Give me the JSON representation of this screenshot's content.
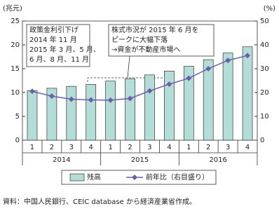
{
  "chart_data": {
    "type": "bar-line",
    "y_label": "(兆元)",
    "y2_label": "(%)",
    "categories": [
      "1",
      "2",
      "3",
      "4",
      "1",
      "2",
      "3",
      "4",
      "1",
      "2",
      "3",
      "4"
    ],
    "years": [
      "2014",
      "2015",
      "2016"
    ],
    "series": [
      {
        "name": "残高",
        "type": "bar",
        "color": "#b5ddd8",
        "values": [
          10.4,
          10.9,
          11.3,
          11.7,
          12.4,
          12.9,
          13.7,
          14.5,
          15.5,
          16.9,
          18.3,
          19.6
        ]
      },
      {
        "name": "前年比（右目盛り）",
        "type": "line",
        "axis": "y2",
        "color": "#6a5fa8",
        "values": [
          20.5,
          18.5,
          17.2,
          16.9,
          16.8,
          17.5,
          20.7,
          23.5,
          26,
          30,
          33.5,
          35.5
        ]
      }
    ],
    "ylim": [
      0,
      25
    ],
    "yticks": [
      0,
      5,
      10,
      15,
      20,
      25
    ],
    "y2lim": [
      0,
      50
    ],
    "y2ticks": [
      0,
      10,
      20,
      30,
      40,
      50
    ],
    "grid": false,
    "annotations": [
      [
        "政策金利引下げ",
        "2014 年 11 月",
        "2015 年 3 月、5 月、",
        "6 月、8 月、11 月"
      ],
      [
        "株式市況が 2015 年 6 月を",
        "ピークに大幅下落",
        "→資金が不動産市場へ"
      ]
    ],
    "source": "資料：中国人民銀行、CEIC database から経済産業省作成。"
  }
}
